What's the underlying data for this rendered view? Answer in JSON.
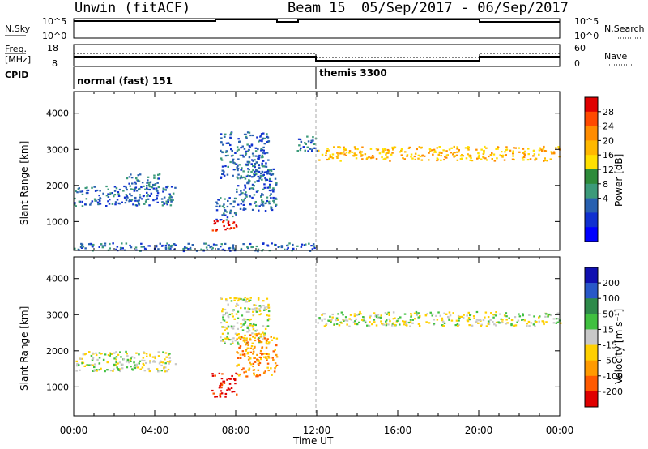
{
  "header": {
    "station": "Unwin (fitACF)",
    "beam": "Beam 15",
    "date_range": "05/Sep/2017 - 06/Sep/2017"
  },
  "panels": {
    "nsky": {
      "label": "N.Sky",
      "tick_top": "10^5",
      "tick_bottom": "10^0"
    },
    "nsearch": {
      "label": "N.Search",
      "tick_top": "10^5",
      "tick_bottom": "10^0"
    },
    "freq": {
      "label_line1": "Freq.",
      "label_line2": "[MHz]",
      "tick_top": "18",
      "tick_bottom": "8"
    },
    "nave": {
      "label": "Nave",
      "tick_top": "60",
      "tick_bottom": "0"
    },
    "cpid": {
      "label": "CPID",
      "modes": [
        "normal (fast) 151",
        "themis 3300"
      ]
    }
  },
  "colorbars": {
    "power": {
      "title": "Power [dB]",
      "ticks": [
        "28",
        "24",
        "20",
        "16",
        "12",
        "8",
        "4"
      ],
      "colors": [
        "#e00000",
        "#ff4a00",
        "#ff8c00",
        "#ffb800",
        "#ffe000",
        "#2e8b3a",
        "#3c9a7a",
        "#2860b0",
        "#1030d0",
        "#0000ff"
      ]
    },
    "velocity": {
      "title": "Velocity [m s⁻¹]",
      "ticks": [
        "200",
        "100",
        "50",
        "15",
        "-15",
        "-50",
        "-100",
        "-200"
      ],
      "colors": [
        "#1010b0",
        "#2858c8",
        "#2e8a4a",
        "#40c040",
        "#c8c8c8",
        "#ffd000",
        "#ff9a00",
        "#ff5a00",
        "#e00000"
      ]
    }
  },
  "chart_data": [
    {
      "type": "heatmap",
      "title": "Power",
      "ylabel": "Slant Range [km]",
      "yticks": [
        "4000",
        "3000",
        "2000",
        "1000"
      ],
      "ylim": [
        200,
        4600
      ],
      "xlim_hours": [
        0,
        24
      ],
      "colorbar": "Power [dB]",
      "echo_regions": [
        {
          "t0": 0.0,
          "t1": 5.0,
          "r0": 1450,
          "r1": 2000,
          "value": "6 dB"
        },
        {
          "t0": 2.5,
          "t1": 4.2,
          "r0": 1900,
          "r1": 2350,
          "value": "6 dB"
        },
        {
          "t0": 6.8,
          "t1": 8.0,
          "r0": 750,
          "r1": 1050,
          "value": "28 dB"
        },
        {
          "t0": 7.0,
          "t1": 8.0,
          "r0": 1050,
          "r1": 1700,
          "value": "14 dB"
        },
        {
          "t0": 7.2,
          "t1": 9.6,
          "r0": 2200,
          "r1": 3500,
          "value": "10 dB"
        },
        {
          "t0": 8.0,
          "t1": 10.0,
          "r0": 1300,
          "r1": 2500,
          "value": "8 dB"
        },
        {
          "t0": 11.0,
          "t1": 12.0,
          "r0": 2950,
          "r1": 3400,
          "value": "6 dB"
        },
        {
          "t0": 12.0,
          "t1": 24.0,
          "r0": 2700,
          "r1": 3100,
          "value": "18 dB"
        },
        {
          "t0": 0.0,
          "t1": 12.0,
          "r0": 200,
          "r1": 420,
          "value": "6 dB"
        }
      ]
    },
    {
      "type": "heatmap",
      "title": "Velocity",
      "ylabel": "Slant Range [km]",
      "yticks": [
        "4000",
        "3000",
        "2000",
        "1000"
      ],
      "ylim": [
        200,
        4600
      ],
      "xlim_hours": [
        0,
        24
      ],
      "colorbar": "Velocity [m s⁻¹]",
      "echo_regions": [
        {
          "t0": 0.0,
          "t1": 5.0,
          "r0": 1450,
          "r1": 2000,
          "value": "-15 to 15 m/s"
        },
        {
          "t0": 6.8,
          "t1": 8.0,
          "r0": 750,
          "r1": 1400,
          "value": "-200 m/s"
        },
        {
          "t0": 7.2,
          "t1": 9.6,
          "r0": 2200,
          "r1": 3500,
          "value": "0 m/s"
        },
        {
          "t0": 8.0,
          "t1": 10.0,
          "r0": 1300,
          "r1": 2500,
          "value": "-100 m/s"
        },
        {
          "t0": 12.0,
          "t1": 24.0,
          "r0": 2700,
          "r1": 3100,
          "value": "-30 m/s"
        }
      ]
    }
  ],
  "xaxis": {
    "label": "Time UT",
    "ticks": [
      "00:00",
      "04:00",
      "08:00",
      "12:00",
      "16:00",
      "20:00",
      "00:00"
    ]
  }
}
